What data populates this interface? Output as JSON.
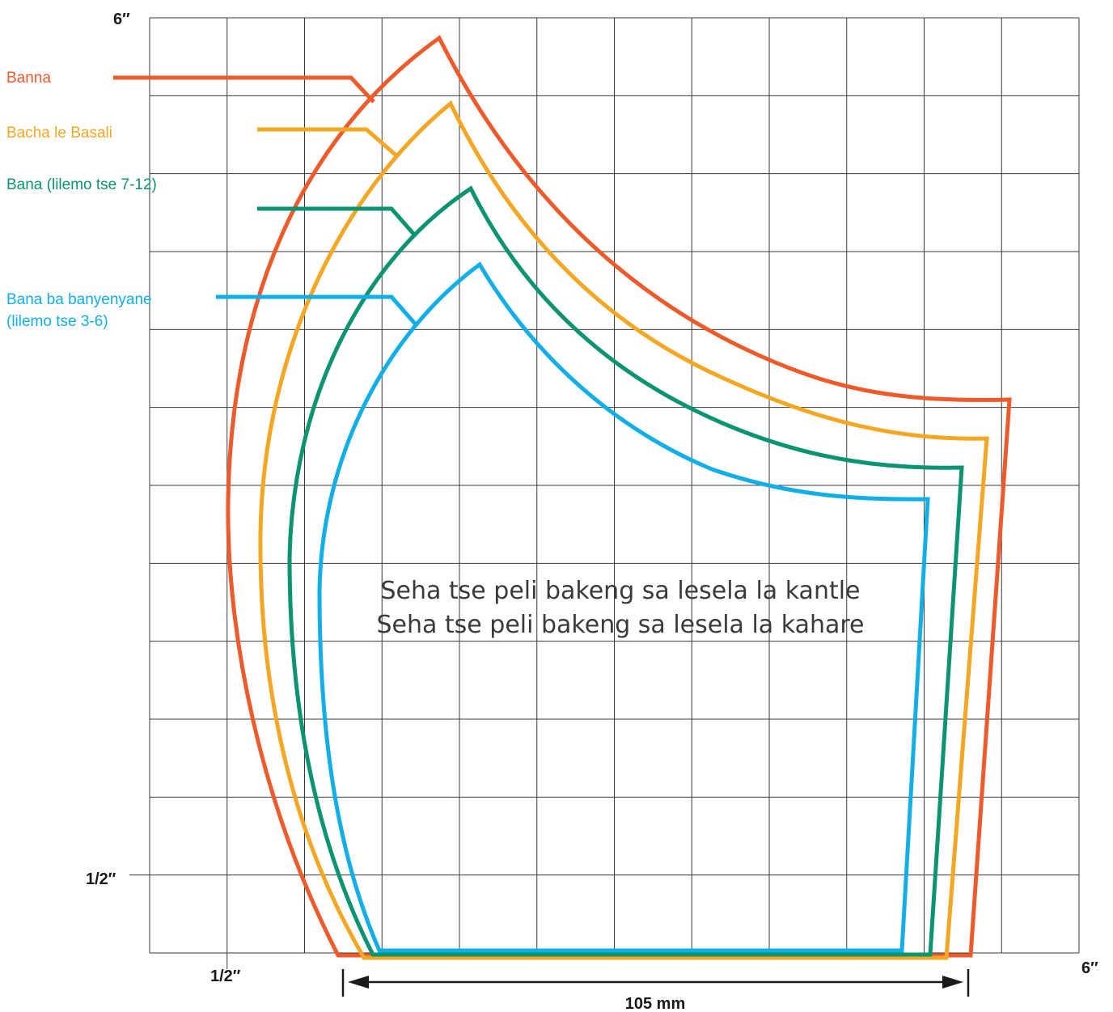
{
  "axis_labels": {
    "top_left": "6″",
    "left_half": "1/2″",
    "bottom_half": "1/2″",
    "bottom_right": "6″"
  },
  "dimension": {
    "label": "105 mm"
  },
  "center_text": {
    "line1": "Seha tse peli bakeng sa lesela la kantle",
    "line2": "Seha tse peli bakeng sa lesela la kahare"
  },
  "sizes": [
    {
      "line1": "Banna",
      "line2": "",
      "color": "#EE5A2A"
    },
    {
      "line1": "Bacha le Basali",
      "line2": "",
      "color": "#F5A623"
    },
    {
      "line1": "Bana (lilemo tse 7-12)",
      "line2": "",
      "color": "#0B9471"
    },
    {
      "line1": "Bana ba banyenyane",
      "line2": "(lilemo tse 3-6)",
      "color": "#12AEE8"
    }
  ],
  "grid_color": "#3a3a3a"
}
